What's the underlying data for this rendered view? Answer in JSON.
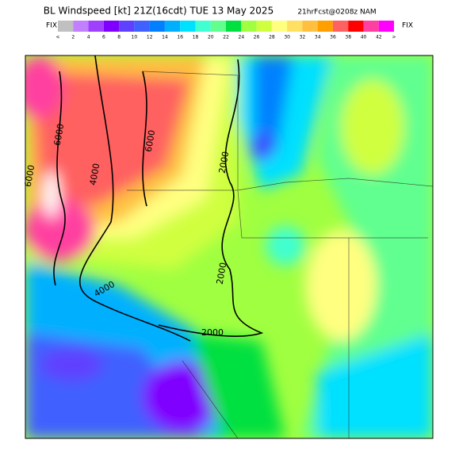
{
  "header": {
    "title": "BL Windspeed [kt] 21Z(16cdt) TUE 13 May 2025",
    "forecast": "21hrFcst@0208z NAM"
  },
  "colorbar": {
    "left_label": "FIX",
    "right_label": "FIX",
    "labels": [
      "<",
      "2",
      "4",
      "6",
      "8",
      "10",
      "12",
      "14",
      "16",
      "18",
      "20",
      "22",
      "24",
      "26",
      "28",
      "30",
      "32",
      "34",
      "36",
      "38",
      "40",
      "42",
      ">"
    ],
    "colors": [
      "#c0c0c0",
      "#c080ff",
      "#a040ff",
      "#8000ff",
      "#6040ff",
      "#4060ff",
      "#0080ff",
      "#00b0ff",
      "#00e0ff",
      "#40ffd0",
      "#60ff90",
      "#00e040",
      "#a0ff40",
      "#d0ff40",
      "#ffff80",
      "#ffe060",
      "#ffc040",
      "#ffa000",
      "#ff6060",
      "#ff0000",
      "#ff40a0",
      "#ff00ff"
    ]
  },
  "map": {
    "contour_labels": [
      "6000",
      "6000",
      "4000",
      "2000",
      "2000",
      "4000",
      "2000",
      "6000"
    ]
  }
}
